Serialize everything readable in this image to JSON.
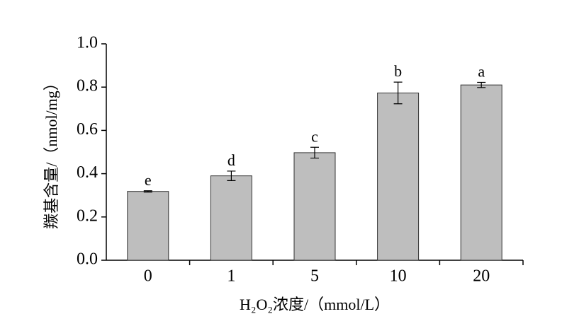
{
  "chart_data": {
    "type": "bar",
    "xlabel": "H₂O₂浓度/（mmol/L）",
    "ylabel": "羰基含量/（nmol/mg）",
    "categories": [
      "0",
      "1",
      "5",
      "10",
      "20"
    ],
    "values": [
      0.318,
      0.39,
      0.497,
      0.773,
      0.81
    ],
    "errors": [
      0.003,
      0.022,
      0.025,
      0.05,
      0.012
    ],
    "annotations": [
      "e",
      "d",
      "c",
      "b",
      "a"
    ],
    "color": "#bebebe",
    "ylim": [
      0,
      1.0
    ],
    "yticks": [
      {
        "value": 0,
        "label": "0.0"
      },
      0.2,
      0.4,
      0.6,
      0.8,
      {
        "value": 1.0,
        "label": "1.0"
      }
    ],
    "grid": false
  }
}
